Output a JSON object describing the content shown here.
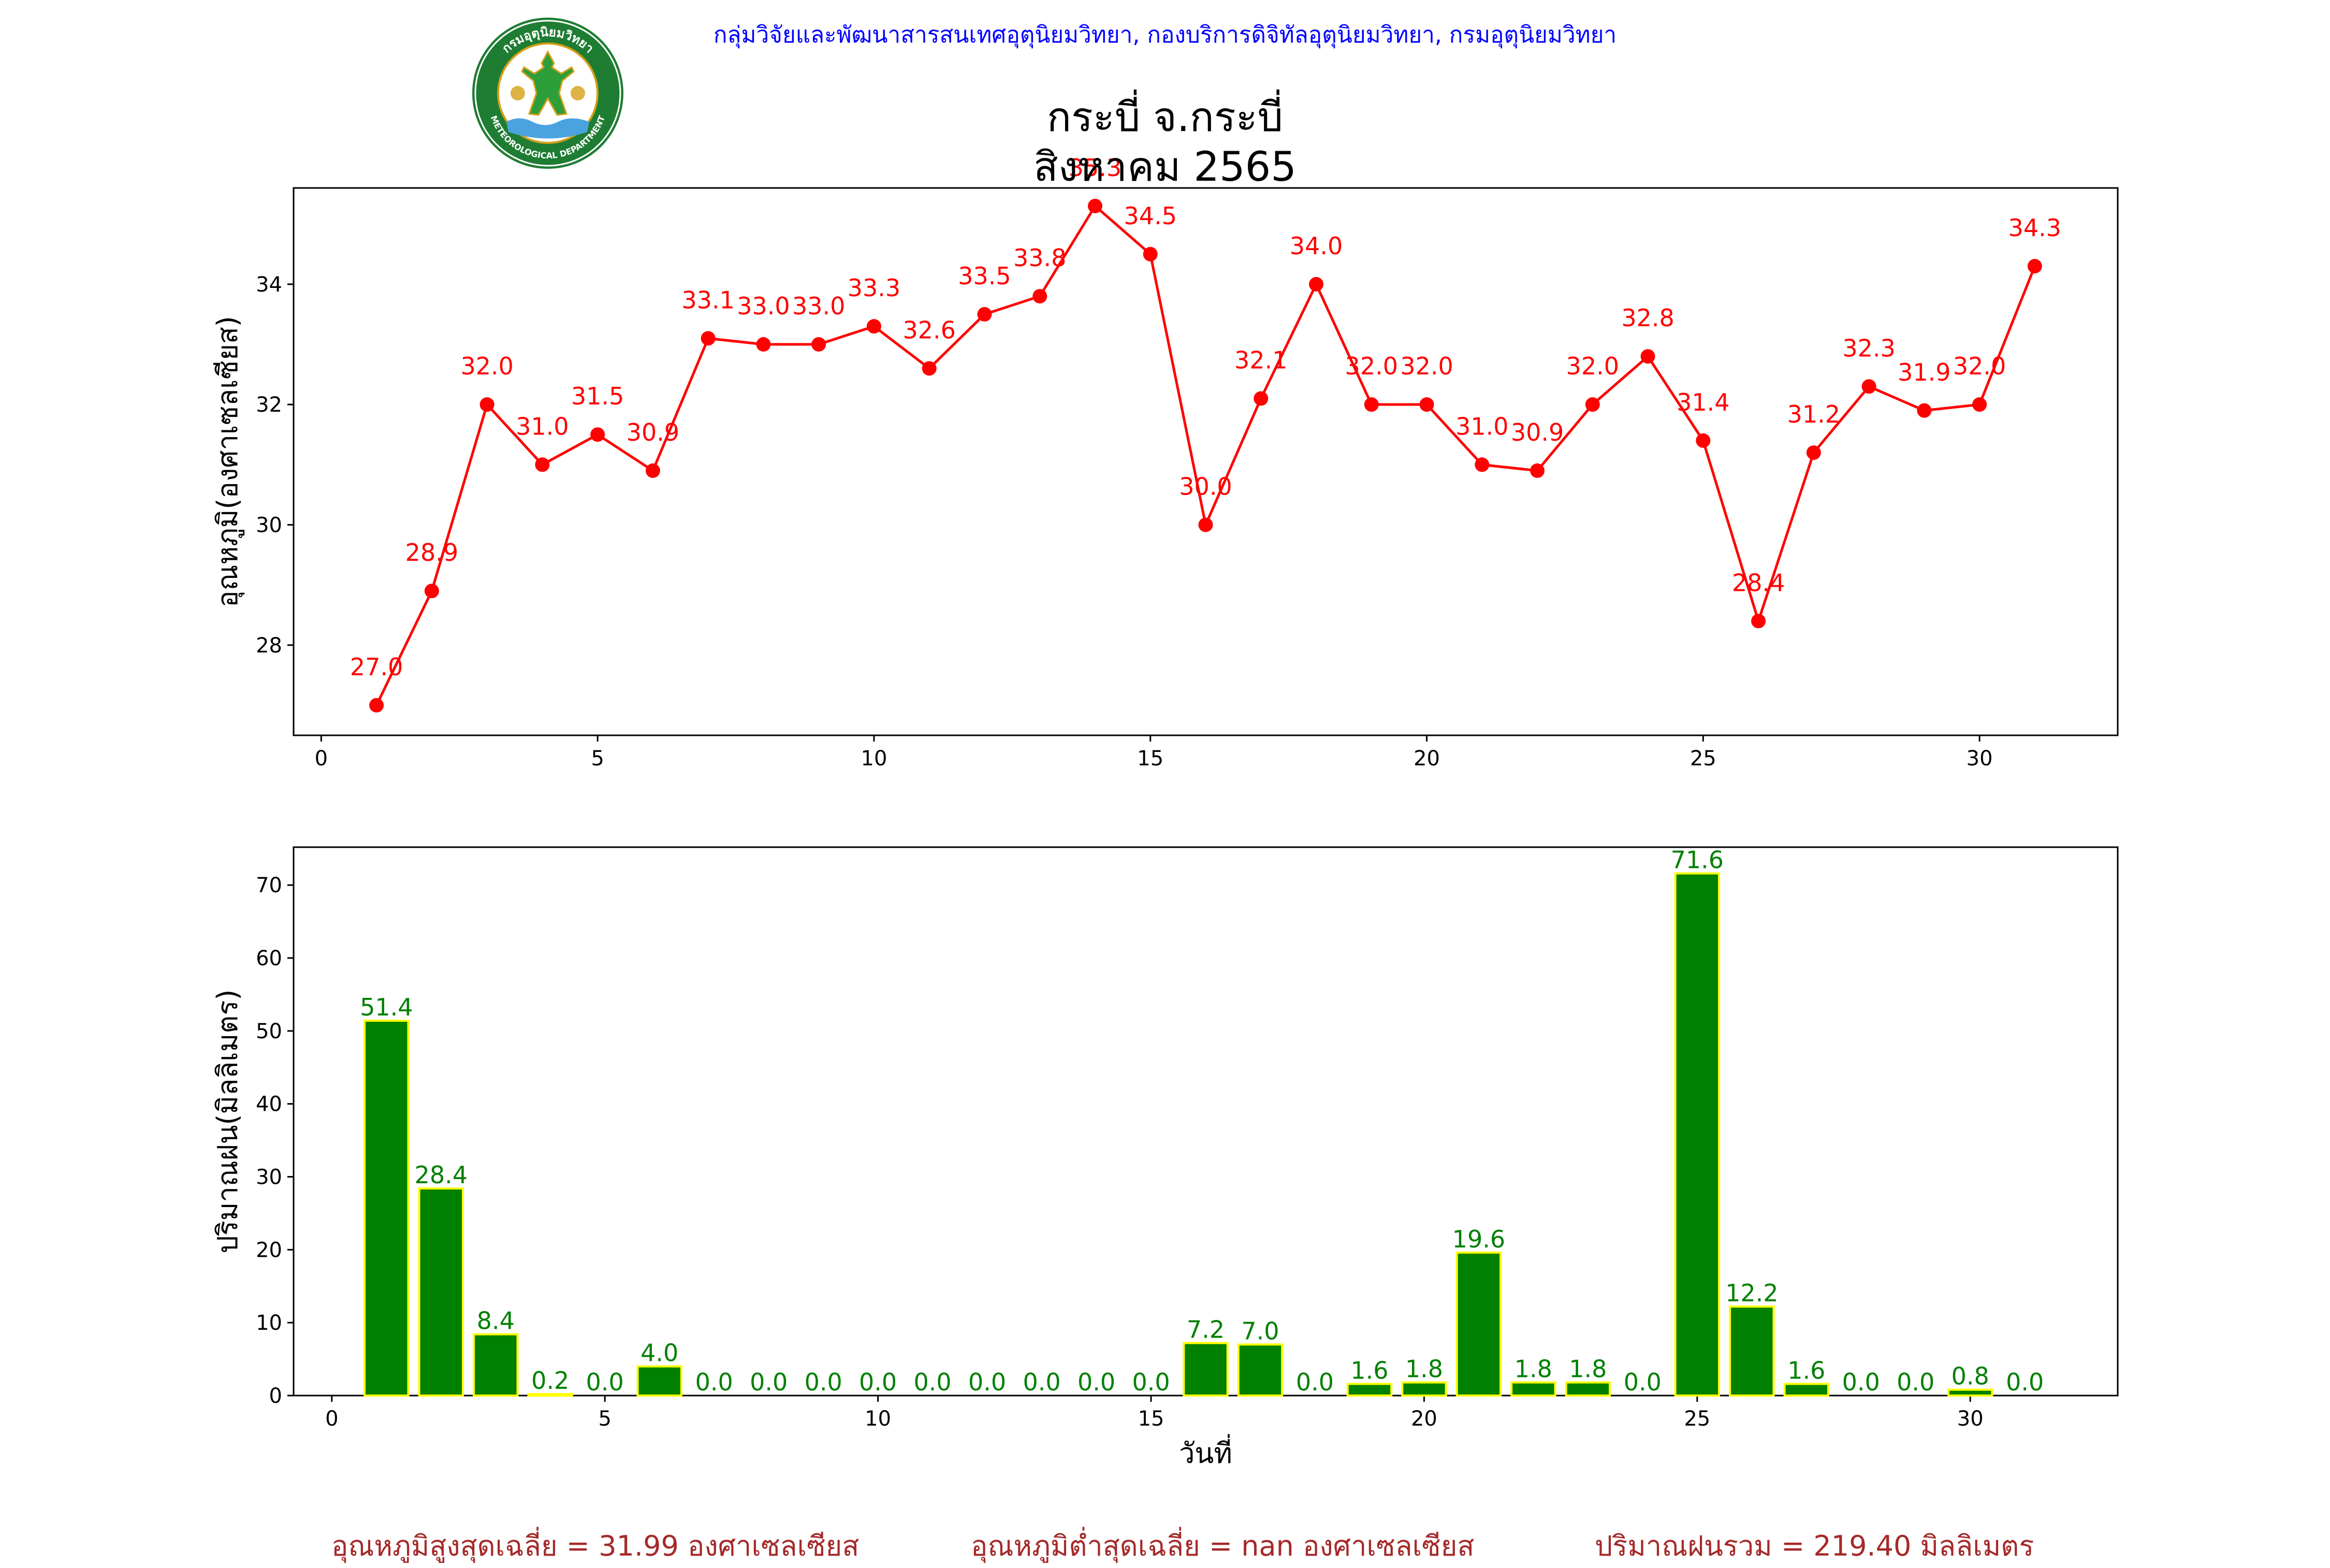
{
  "header": {
    "credit": "กลุ่มวิจัยและพัฒนาสารสนเทศอุตุนิยมวิทยา, กองบริการดิจิทัลอุตุนิยมวิทยา, กรมอุตุนิยมวิทยา",
    "title_line1": "กระบี่ จ.กระบี่",
    "title_line2": "สิงหาคม 2565"
  },
  "logo": {
    "text_top": "กรมอุตุนิยมวิทยา",
    "text_bottom": "METEOROLOGICAL DEPARTMENT",
    "colors": {
      "ring": "#1e7d32",
      "inner": "#ffffff",
      "figure": "#2e9e3a",
      "gold": "#d4a017",
      "water": "#4aa3df"
    }
  },
  "chart_data": [
    {
      "type": "line",
      "ylabel": "อุณหภูมิ(องศาเซลเซียส)",
      "xlabel": "",
      "xlim": [
        -0.5,
        32.5
      ],
      "ylim": [
        26.5,
        35.6
      ],
      "xticks": [
        0,
        5,
        10,
        15,
        20,
        25,
        30
      ],
      "yticks": [
        28,
        30,
        32,
        34
      ],
      "color": "#ff0000",
      "x": [
        1,
        2,
        3,
        4,
        5,
        6,
        7,
        8,
        9,
        10,
        11,
        12,
        13,
        14,
        15,
        16,
        17,
        18,
        19,
        20,
        21,
        22,
        23,
        24,
        25,
        26,
        27,
        28,
        29,
        30,
        31
      ],
      "values": [
        27.0,
        28.9,
        32.0,
        31.0,
        31.5,
        30.9,
        33.1,
        33.0,
        33.0,
        33.3,
        32.6,
        33.5,
        33.8,
        35.3,
        34.5,
        30.0,
        32.1,
        34.0,
        32.0,
        32.0,
        31.0,
        30.9,
        32.0,
        32.8,
        31.4,
        28.4,
        31.2,
        32.3,
        31.9,
        32.0,
        34.3
      ],
      "labels": [
        "27.0",
        "28.9",
        "32.0",
        "31.0",
        "31.5",
        "30.9",
        "33.1",
        "33.0",
        "33.0",
        "33.3",
        "32.6",
        "33.5",
        "33.8",
        "35.3",
        "34.5",
        "30.0",
        "32.1",
        "34.0",
        "32.0",
        "32.0",
        "31.0",
        "30.9",
        "32.0",
        "32.8",
        "31.4",
        "28.4",
        "31.2",
        "32.3",
        "31.9",
        "32.0",
        "34.3"
      ],
      "grid": false
    },
    {
      "type": "bar",
      "ylabel": "ปริมาณฝน(มิลลิเมตร)",
      "xlabel": "วันที่",
      "xlim": [
        -0.7,
        32.7
      ],
      "ylim": [
        0,
        75.2
      ],
      "xticks": [
        0,
        5,
        10,
        15,
        20,
        25,
        30
      ],
      "yticks": [
        0,
        10,
        20,
        30,
        40,
        50,
        60,
        70
      ],
      "color": "#008000",
      "edgecolor": "#ffff00",
      "x": [
        1,
        2,
        3,
        4,
        5,
        6,
        7,
        8,
        9,
        10,
        11,
        12,
        13,
        14,
        15,
        16,
        17,
        18,
        19,
        20,
        21,
        22,
        23,
        24,
        25,
        26,
        27,
        28,
        29,
        30,
        31
      ],
      "values": [
        51.4,
        28.4,
        8.4,
        0.2,
        0.0,
        4.0,
        0.0,
        0.0,
        0.0,
        0.0,
        0.0,
        0.0,
        0.0,
        0.0,
        0.0,
        7.2,
        7.0,
        0.0,
        1.6,
        1.8,
        19.6,
        1.8,
        1.8,
        0.0,
        71.6,
        12.2,
        1.6,
        0.0,
        0.0,
        0.8,
        0.0
      ],
      "labels": [
        "51.4",
        "28.4",
        "8.4",
        "0.2",
        "0.0",
        "4.0",
        "0.0",
        "0.0",
        "0.0",
        "0.0",
        "0.0",
        "0.0",
        "0.0",
        "0.0",
        "0.0",
        "7.2",
        "7.0",
        "0.0",
        "1.6",
        "1.8",
        "19.6",
        "1.8",
        "1.8",
        "0.0",
        "71.6",
        "12.2",
        "1.6",
        "0.0",
        "0.0",
        "0.8",
        "0.0"
      ],
      "grid": false
    }
  ],
  "footer": {
    "avg_max": "อุณหภูมิสูงสุดเฉลี่ย = 31.99 องศาเซลเซียส",
    "avg_min": "อุณหภูมิต่ำสุดเฉลี่ย = nan องศาเซลเซียส",
    "rain_total": "ปริมาณฝนรวม = 219.40 มิลลิเมตร"
  }
}
